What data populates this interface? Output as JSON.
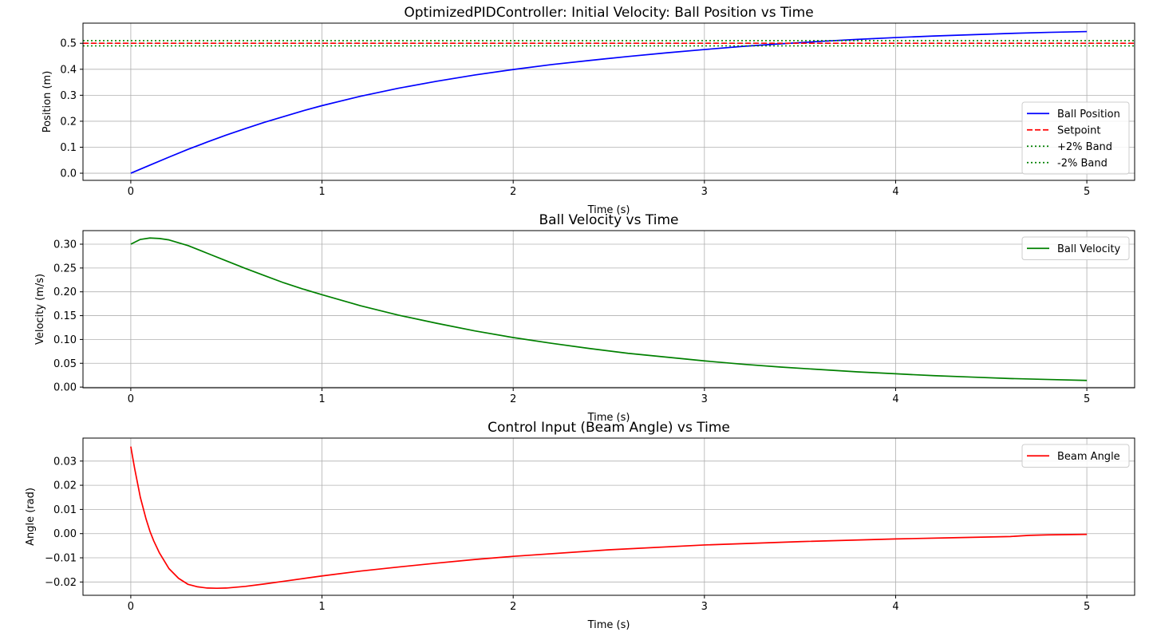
{
  "chart_data": [
    {
      "type": "line",
      "title": "OptimizedPIDController: Initial Velocity: Ball Position vs Time",
      "xlabel": "Time (s)",
      "ylabel": "Position (m)",
      "xlim": [
        -0.25,
        5.25
      ],
      "ylim": [
        -0.0275,
        0.5775
      ],
      "xticks": [
        0,
        1,
        2,
        3,
        4,
        5
      ],
      "xtick_labels": [
        "0",
        "1",
        "2",
        "3",
        "4",
        "5"
      ],
      "yticks": [
        0.0,
        0.1,
        0.2,
        0.3,
        0.4,
        0.5
      ],
      "ytick_labels": [
        "0.0",
        "0.1",
        "0.2",
        "0.3",
        "0.4",
        "0.5"
      ],
      "grid": true,
      "legend_position": "lower-right",
      "series": [
        {
          "name": "Ball Position",
          "color": "#0000ff",
          "style": "solid",
          "x": [
            0,
            0.1,
            0.2,
            0.3,
            0.4,
            0.5,
            0.6,
            0.7,
            0.8,
            0.9,
            1.0,
            1.2,
            1.4,
            1.6,
            1.8,
            2.0,
            2.2,
            2.4,
            2.6,
            2.8,
            3.0,
            3.2,
            3.4,
            3.6,
            3.8,
            4.0,
            4.2,
            4.4,
            4.6,
            4.8,
            5.0
          ],
          "y": [
            0.0,
            0.031,
            0.062,
            0.092,
            0.12,
            0.147,
            0.172,
            0.196,
            0.218,
            0.24,
            0.26,
            0.296,
            0.327,
            0.354,
            0.378,
            0.399,
            0.418,
            0.434,
            0.449,
            0.463,
            0.476,
            0.488,
            0.498,
            0.507,
            0.515,
            0.522,
            0.528,
            0.533,
            0.538,
            0.542,
            0.545
          ]
        },
        {
          "name": "Setpoint",
          "color": "#ff0000",
          "style": "dashed",
          "hline": 0.5
        },
        {
          "name": "+2% Band",
          "color": "#008000",
          "style": "dotted",
          "hline": 0.51
        },
        {
          "name": "-2% Band",
          "color": "#008000",
          "style": "dotted",
          "hline": 0.49
        }
      ]
    },
    {
      "type": "line",
      "title": "Ball Velocity vs Time",
      "xlabel": "Time (s)",
      "ylabel": "Velocity (m/s)",
      "xlim": [
        -0.25,
        5.25
      ],
      "ylim": [
        -0.0015,
        0.3285
      ],
      "xticks": [
        0,
        1,
        2,
        3,
        4,
        5
      ],
      "xtick_labels": [
        "0",
        "1",
        "2",
        "3",
        "4",
        "5"
      ],
      "yticks": [
        0.0,
        0.05,
        0.1,
        0.15,
        0.2,
        0.25,
        0.3
      ],
      "ytick_labels": [
        "0.00",
        "0.05",
        "0.10",
        "0.15",
        "0.20",
        "0.25",
        "0.30"
      ],
      "grid": true,
      "legend_position": "upper-right",
      "series": [
        {
          "name": "Ball Velocity",
          "color": "#008000",
          "style": "solid",
          "x": [
            0,
            0.05,
            0.1,
            0.15,
            0.2,
            0.3,
            0.4,
            0.5,
            0.6,
            0.7,
            0.8,
            0.9,
            1.0,
            1.2,
            1.4,
            1.6,
            1.8,
            2.0,
            2.2,
            2.4,
            2.6,
            2.8,
            3.0,
            3.2,
            3.4,
            3.6,
            3.8,
            4.0,
            4.2,
            4.4,
            4.6,
            4.8,
            5.0
          ],
          "y": [
            0.3,
            0.31,
            0.313,
            0.312,
            0.309,
            0.297,
            0.281,
            0.265,
            0.249,
            0.234,
            0.219,
            0.206,
            0.194,
            0.171,
            0.151,
            0.134,
            0.118,
            0.104,
            0.092,
            0.081,
            0.071,
            0.063,
            0.055,
            0.048,
            0.042,
            0.037,
            0.032,
            0.028,
            0.024,
            0.021,
            0.018,
            0.016,
            0.014
          ]
        }
      ]
    },
    {
      "type": "line",
      "title": "Control Input (Beam Angle) vs Time",
      "xlabel": "Time (s)",
      "ylabel": "Angle (rad)",
      "xlim": [
        -0.25,
        5.25
      ],
      "ylim": [
        -0.0255,
        0.0395
      ],
      "xticks": [
        0,
        1,
        2,
        3,
        4,
        5
      ],
      "xtick_labels": [
        "0",
        "1",
        "2",
        "3",
        "4",
        "5"
      ],
      "yticks": [
        -0.02,
        -0.01,
        0.0,
        0.01,
        0.02,
        0.03
      ],
      "ytick_labels": [
        "−0.02",
        "−0.01",
        "0.00",
        "0.01",
        "0.02",
        "0.03"
      ],
      "grid": true,
      "legend_position": "upper-right",
      "series": [
        {
          "name": "Beam Angle",
          "color": "#ff0000",
          "style": "solid",
          "x": [
            0,
            0.02,
            0.05,
            0.08,
            0.1,
            0.12,
            0.15,
            0.2,
            0.25,
            0.3,
            0.35,
            0.4,
            0.45,
            0.5,
            0.6,
            0.7,
            0.8,
            1.0,
            1.2,
            1.4,
            1.6,
            1.8,
            2.0,
            2.5,
            3.0,
            3.5,
            4.0,
            4.3,
            4.6,
            4.7,
            4.8,
            5.0
          ],
          "y": [
            0.036,
            0.027,
            0.015,
            0.006,
            0.001,
            -0.003,
            -0.008,
            -0.0145,
            -0.0185,
            -0.021,
            -0.022,
            -0.0225,
            -0.0226,
            -0.0225,
            -0.0218,
            -0.0208,
            -0.0197,
            -0.0175,
            -0.0155,
            -0.0138,
            -0.0122,
            -0.0107,
            -0.0094,
            -0.0067,
            -0.0047,
            -0.0033,
            -0.0022,
            -0.0017,
            -0.0012,
            -0.0007,
            -0.0005,
            -0.0003
          ]
        }
      ]
    }
  ]
}
